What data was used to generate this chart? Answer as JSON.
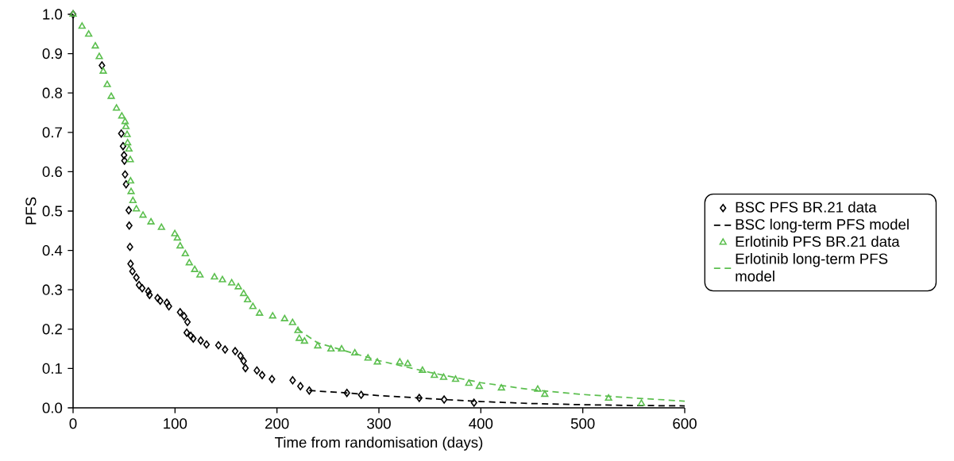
{
  "chart_data": {
    "type": "scatter",
    "xlabel": "Time from randomisation (days)",
    "ylabel": "PFS",
    "xlim": [
      0,
      600
    ],
    "xticks": [
      0,
      100,
      200,
      300,
      400,
      500,
      600
    ],
    "ylim": [
      0,
      1.0
    ],
    "yticks": [
      {
        "value": 0,
        "label": "0.0"
      },
      0.1,
      0.2,
      0.3,
      0.4,
      0.5,
      0.6,
      0.7,
      0.8,
      0.9,
      {
        "value": 1.0,
        "label": "1.0"
      }
    ],
    "legend": "right",
    "series": [
      {
        "name": "BSC PFS BR.21 data",
        "type": "scatter",
        "marker": "diamond",
        "color": "#000000",
        "x": [
          0,
          28.3,
          47.3,
          49,
          50,
          50.4,
          51,
          52,
          54.6,
          55.1,
          55.8,
          56.4,
          58.2,
          62.1,
          64.7,
          67.8,
          73.8,
          75,
          82.9,
          85.5,
          92,
          94,
          105,
          108.9,
          112.2,
          111.5,
          115.4,
          117.9,
          125.2,
          130.9,
          142.6,
          149.1,
          159,
          164.2,
          167.3,
          169.1,
          180.3,
          185.5,
          195.1,
          215.4,
          223,
          231.7,
          268.6,
          282.6,
          339.6,
          364,
          393.3
        ],
        "values": [
          1.0,
          0.87,
          0.697,
          0.665,
          0.642,
          0.628,
          0.593,
          0.568,
          0.502,
          0.463,
          0.409,
          0.366,
          0.347,
          0.331,
          0.312,
          0.304,
          0.296,
          0.287,
          0.279,
          0.272,
          0.267,
          0.258,
          0.243,
          0.233,
          0.218,
          0.191,
          0.183,
          0.176,
          0.171,
          0.161,
          0.159,
          0.148,
          0.144,
          0.132,
          0.119,
          0.101,
          0.095,
          0.083,
          0.073,
          0.07,
          0.055,
          0.044,
          0.038,
          0.033,
          0.025,
          0.021,
          0.013
        ]
      },
      {
        "name": "BSC long-term PFS model",
        "type": "line",
        "line_style": "dashed",
        "color": "#000000",
        "x": [
          231.7,
          268,
          300,
          340,
          364,
          400,
          450,
          500,
          550,
          600
        ],
        "values": [
          0.044,
          0.038,
          0.031,
          0.025,
          0.021,
          0.016,
          0.011,
          0.008,
          0.006,
          0.005
        ]
      },
      {
        "name": "Erlotinib PFS BR.21 data",
        "type": "scatter",
        "marker": "triangle",
        "color": "#5cbf4f",
        "x": [
          0,
          8.8,
          15.3,
          21.8,
          25.7,
          29.6,
          33.5,
          37.4,
          42.6,
          47.8,
          51,
          51.8,
          53,
          53.5,
          54.8,
          56.1,
          56.4,
          56.9,
          58.7,
          62.1,
          68.6,
          76.4,
          86.7,
          99.8,
          102.3,
          105,
          110.1,
          114,
          119.3,
          124.5,
          138.7,
          146.5,
          155.6,
          162.1,
          167.3,
          171.2,
          176.4,
          182.9,
          195.8,
          207.5,
          215.3,
          220.6,
          221.9,
          227,
          240,
          253,
          263.4,
          276.4,
          289.3,
          298.5,
          320.5,
          328.3,
          342.7,
          354.4,
          363.5,
          375.2,
          388.2,
          398.5,
          420.2,
          455.8,
          462.7,
          525.3,
          557.5
        ],
        "values": [
          1.0,
          0.969,
          0.949,
          0.919,
          0.892,
          0.855,
          0.821,
          0.791,
          0.761,
          0.741,
          0.727,
          0.714,
          0.694,
          0.673,
          0.657,
          0.63,
          0.576,
          0.549,
          0.526,
          0.505,
          0.489,
          0.472,
          0.458,
          0.442,
          0.431,
          0.411,
          0.391,
          0.368,
          0.351,
          0.337,
          0.332,
          0.325,
          0.317,
          0.307,
          0.29,
          0.274,
          0.257,
          0.24,
          0.233,
          0.226,
          0.216,
          0.196,
          0.176,
          0.169,
          0.157,
          0.149,
          0.149,
          0.139,
          0.126,
          0.116,
          0.116,
          0.112,
          0.095,
          0.082,
          0.077,
          0.072,
          0.062,
          0.054,
          0.05,
          0.047,
          0.034,
          0.024,
          0.011
        ]
      },
      {
        "name": "Erlotinib long-term PFS model",
        "type": "line",
        "line_style": "dashed",
        "color": "#5cbf4f",
        "x": [
          220,
          240,
          260,
          300,
          350,
          400,
          450,
          500,
          550,
          600
        ],
        "values": [
          0.2,
          0.165,
          0.15,
          0.12,
          0.09,
          0.064,
          0.046,
          0.034,
          0.025,
          0.017
        ]
      }
    ]
  }
}
